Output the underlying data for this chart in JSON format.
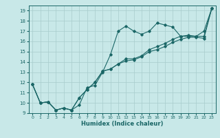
{
  "title": "",
  "xlabel": "Humidex (Indice chaleur)",
  "background_color": "#c8e8e8",
  "grid_color": "#a8cccc",
  "line_color": "#1a6666",
  "xlim": [
    -0.5,
    23.5
  ],
  "ylim": [
    9,
    19.5
  ],
  "x_ticks": [
    0,
    1,
    2,
    3,
    4,
    5,
    6,
    7,
    8,
    9,
    10,
    11,
    12,
    13,
    14,
    15,
    16,
    17,
    18,
    19,
    20,
    21,
    22,
    23
  ],
  "y_ticks": [
    9,
    10,
    11,
    12,
    13,
    14,
    15,
    16,
    17,
    18,
    19
  ],
  "line1_x": [
    0,
    1,
    2,
    3,
    4,
    5,
    6,
    7,
    8,
    9,
    10,
    11,
    12,
    13,
    14,
    15,
    16,
    17,
    18,
    19,
    20,
    21,
    22,
    23
  ],
  "line1_y": [
    11.8,
    10.0,
    10.1,
    9.3,
    9.5,
    9.3,
    9.8,
    11.5,
    11.7,
    13.0,
    14.7,
    17.0,
    17.5,
    17.0,
    16.7,
    17.0,
    17.8,
    17.6,
    17.4,
    16.5,
    16.5,
    16.5,
    17.0,
    19.2
  ],
  "line2_x": [
    0,
    1,
    2,
    3,
    4,
    5,
    6,
    7,
    8,
    9,
    10,
    11,
    12,
    13,
    14,
    15,
    16,
    17,
    18,
    19,
    20,
    21,
    22,
    23
  ],
  "line2_y": [
    11.8,
    10.0,
    10.1,
    9.3,
    9.5,
    9.3,
    10.5,
    11.3,
    12.0,
    13.1,
    13.3,
    13.8,
    14.3,
    14.3,
    14.6,
    15.2,
    15.5,
    15.8,
    16.2,
    16.5,
    16.6,
    16.5,
    16.5,
    19.2
  ],
  "line3_x": [
    0,
    1,
    2,
    3,
    4,
    5,
    6,
    7,
    8,
    9,
    10,
    11,
    12,
    13,
    14,
    15,
    16,
    17,
    18,
    19,
    20,
    21,
    22,
    23
  ],
  "line3_y": [
    11.8,
    10.0,
    10.1,
    9.3,
    9.5,
    9.3,
    10.5,
    11.3,
    12.0,
    13.1,
    13.3,
    13.8,
    14.1,
    14.2,
    14.5,
    15.0,
    15.2,
    15.5,
    15.9,
    16.2,
    16.4,
    16.4,
    16.3,
    19.2
  ]
}
